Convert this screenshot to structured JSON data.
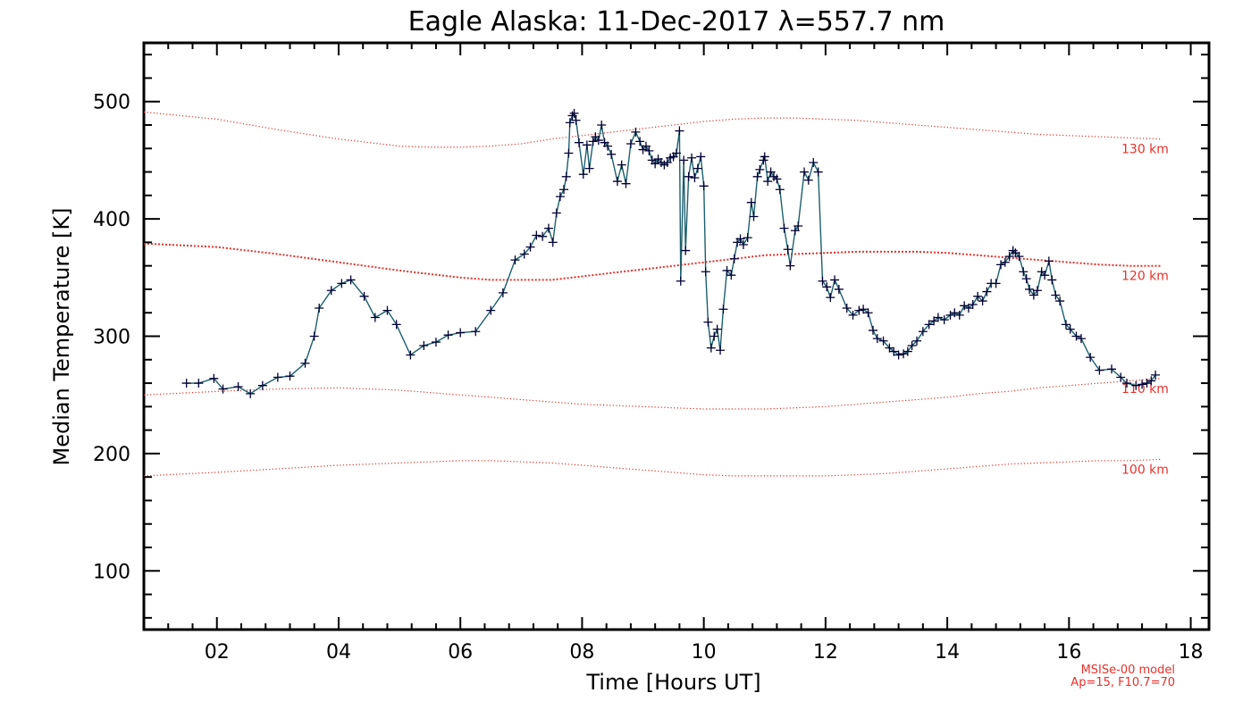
{
  "chart_data": {
    "type": "line",
    "title": "Eagle Alaska: 11-Dec-2017 λ=557.7 nm",
    "xlabel": "Time [Hours UT]",
    "ylabel": "Median Temperature [K]",
    "xlim": [
      0.8,
      18.3
    ],
    "ylim": [
      50,
      550
    ],
    "xticks": [
      2,
      4,
      6,
      8,
      10,
      12,
      14,
      16,
      18
    ],
    "xtick_labels": [
      "02",
      "04",
      "06",
      "08",
      "10",
      "12",
      "14",
      "16",
      "18"
    ],
    "yticks": [
      100,
      200,
      300,
      400,
      500
    ],
    "ytick_labels": [
      "100",
      "200",
      "300",
      "400",
      "500"
    ],
    "grid": false,
    "annotations": [
      "MSISe-00 model",
      "Ap=15, F10.7=70"
    ],
    "colors": {
      "data_line": "#1c5f6e",
      "data_marker": "#000033",
      "model": "#e8302a"
    },
    "series": [
      {
        "points": [
          [
            1.5,
            260
          ],
          [
            1.7,
            260
          ],
          [
            1.95,
            264
          ],
          [
            2.1,
            255
          ],
          [
            2.35,
            257
          ],
          [
            2.55,
            251
          ],
          [
            2.75,
            258
          ],
          [
            3.0,
            265
          ],
          [
            3.2,
            266
          ],
          [
            3.45,
            277
          ],
          [
            3.6,
            300
          ],
          [
            3.68,
            324
          ],
          [
            3.88,
            339
          ],
          [
            4.05,
            345
          ],
          [
            4.2,
            348
          ],
          [
            4.42,
            334
          ],
          [
            4.6,
            316
          ],
          [
            4.8,
            322
          ],
          [
            4.95,
            310
          ],
          [
            5.18,
            284
          ],
          [
            5.4,
            292
          ],
          [
            5.6,
            295
          ],
          [
            5.8,
            301
          ],
          [
            6.0,
            303
          ],
          [
            6.25,
            304
          ],
          [
            6.5,
            322
          ],
          [
            6.7,
            337
          ],
          [
            6.9,
            365
          ],
          [
            7.05,
            370
          ],
          [
            7.15,
            376
          ],
          [
            7.25,
            386
          ],
          [
            7.35,
            385
          ],
          [
            7.45,
            392
          ],
          [
            7.52,
            380
          ],
          [
            7.58,
            405
          ],
          [
            7.64,
            419
          ],
          [
            7.7,
            425
          ],
          [
            7.74,
            436
          ],
          [
            7.78,
            456
          ],
          [
            7.8,
            482
          ],
          [
            7.84,
            488
          ],
          [
            7.87,
            490
          ],
          [
            7.9,
            484
          ],
          [
            7.95,
            465
          ],
          [
            8.02,
            438
          ],
          [
            8.08,
            463
          ],
          [
            8.12,
            443
          ],
          [
            8.18,
            466
          ],
          [
            8.22,
            470
          ],
          [
            8.27,
            467
          ],
          [
            8.32,
            480
          ],
          [
            8.37,
            465
          ],
          [
            8.42,
            462
          ],
          [
            8.48,
            455
          ],
          [
            8.58,
            432
          ],
          [
            8.65,
            446
          ],
          [
            8.72,
            430
          ],
          [
            8.8,
            464
          ],
          [
            8.88,
            474
          ],
          [
            8.95,
            466
          ],
          [
            9.0,
            459
          ],
          [
            9.05,
            462
          ],
          [
            9.1,
            458
          ],
          [
            9.15,
            450
          ],
          [
            9.2,
            447
          ],
          [
            9.25,
            451
          ],
          [
            9.3,
            448
          ],
          [
            9.35,
            446
          ],
          [
            9.4,
            448
          ],
          [
            9.45,
            452
          ],
          [
            9.5,
            453
          ],
          [
            9.55,
            456
          ],
          [
            9.6,
            475
          ],
          [
            9.62,
            347
          ],
          [
            9.67,
            450
          ],
          [
            9.7,
            373
          ],
          [
            9.75,
            436
          ],
          [
            9.8,
            452
          ],
          [
            9.85,
            435
          ],
          [
            9.9,
            443
          ],
          [
            9.95,
            453
          ],
          [
            10.0,
            428
          ],
          [
            10.03,
            355
          ],
          [
            10.07,
            312
          ],
          [
            10.12,
            290
          ],
          [
            10.17,
            300
          ],
          [
            10.22,
            306
          ],
          [
            10.27,
            288
          ],
          [
            10.32,
            323
          ],
          [
            10.38,
            356
          ],
          [
            10.45,
            352
          ],
          [
            10.5,
            366
          ],
          [
            10.55,
            380
          ],
          [
            10.6,
            383
          ],
          [
            10.65,
            378
          ],
          [
            10.72,
            384
          ],
          [
            10.78,
            414
          ],
          [
            10.82,
            402
          ],
          [
            10.88,
            436
          ],
          [
            10.92,
            442
          ],
          [
            10.98,
            450
          ],
          [
            11.0,
            453
          ],
          [
            11.05,
            432
          ],
          [
            11.1,
            440
          ],
          [
            11.15,
            436
          ],
          [
            11.2,
            434
          ],
          [
            11.25,
            425
          ],
          [
            11.32,
            392
          ],
          [
            11.38,
            374
          ],
          [
            11.42,
            360
          ],
          [
            11.5,
            390
          ],
          [
            11.55,
            394
          ],
          [
            11.65,
            440
          ],
          [
            11.72,
            433
          ],
          [
            11.8,
            448
          ],
          [
            11.88,
            440
          ],
          [
            11.95,
            347
          ],
          [
            12.02,
            342
          ],
          [
            12.08,
            333
          ],
          [
            12.15,
            348
          ],
          [
            12.22,
            340
          ],
          [
            12.35,
            324
          ],
          [
            12.45,
            318
          ],
          [
            12.55,
            322
          ],
          [
            12.62,
            323
          ],
          [
            12.7,
            320
          ],
          [
            12.78,
            305
          ],
          [
            12.85,
            298
          ],
          [
            12.95,
            296
          ],
          [
            13.05,
            290
          ],
          [
            13.12,
            287
          ],
          [
            13.2,
            284
          ],
          [
            13.28,
            285
          ],
          [
            13.35,
            287
          ],
          [
            13.42,
            292
          ],
          [
            13.5,
            296
          ],
          [
            13.6,
            304
          ],
          [
            13.7,
            310
          ],
          [
            13.78,
            313
          ],
          [
            13.85,
            316
          ],
          [
            13.95,
            314
          ],
          [
            14.05,
            318
          ],
          [
            14.12,
            320
          ],
          [
            14.2,
            318
          ],
          [
            14.28,
            326
          ],
          [
            14.35,
            324
          ],
          [
            14.42,
            327
          ],
          [
            14.5,
            334
          ],
          [
            14.58,
            330
          ],
          [
            14.65,
            338
          ],
          [
            14.72,
            345
          ],
          [
            14.8,
            345
          ],
          [
            14.88,
            361
          ],
          [
            14.95,
            363
          ],
          [
            15.02,
            368
          ],
          [
            15.08,
            373
          ],
          [
            15.12,
            371
          ],
          [
            15.18,
            368
          ],
          [
            15.25,
            355
          ],
          [
            15.3,
            349
          ],
          [
            15.35,
            340
          ],
          [
            15.42,
            335
          ],
          [
            15.48,
            339
          ],
          [
            15.55,
            355
          ],
          [
            15.6,
            352
          ],
          [
            15.67,
            364
          ],
          [
            15.72,
            348
          ],
          [
            15.78,
            335
          ],
          [
            15.85,
            330
          ],
          [
            15.95,
            310
          ],
          [
            16.02,
            306
          ],
          [
            16.12,
            300
          ],
          [
            16.2,
            298
          ],
          [
            16.35,
            282
          ],
          [
            16.5,
            271
          ],
          [
            16.7,
            272
          ],
          [
            16.85,
            265
          ],
          [
            16.95,
            260
          ],
          [
            17.1,
            258
          ],
          [
            17.2,
            259
          ],
          [
            17.28,
            260
          ],
          [
            17.35,
            262
          ],
          [
            17.42,
            267
          ]
        ]
      }
    ],
    "model_curves": [
      {
        "label": "130 km",
        "x": [
          0.8,
          2.0,
          3.0,
          4.0,
          5.0,
          5.5,
          6.0,
          6.5,
          7.0,
          7.5,
          8.0,
          8.5,
          9.0,
          9.5,
          10.0,
          10.5,
          11.0,
          11.5,
          12.0,
          12.5,
          13.0,
          13.5,
          14.0,
          14.5,
          15.0,
          15.5,
          16.0,
          16.5,
          17.0,
          17.5
        ],
        "y": [
          491,
          485,
          476,
          468,
          462,
          461,
          461,
          462,
          464,
          468,
          471,
          474,
          477,
          480,
          483,
          485,
          486,
          486,
          485,
          484,
          482,
          480,
          478,
          476,
          474,
          472,
          471,
          470,
          469,
          468
        ]
      },
      {
        "label": "120 km",
        "x": [
          0.8,
          2.0,
          3.0,
          4.0,
          5.0,
          5.5,
          6.0,
          6.5,
          7.0,
          7.5,
          8.0,
          8.5,
          9.0,
          9.5,
          10.0,
          10.5,
          11.0,
          11.5,
          12.0,
          12.5,
          13.0,
          13.5,
          14.0,
          14.5,
          15.0,
          15.5,
          16.0,
          16.5,
          17.0,
          17.5
        ],
        "y": [
          379,
          376,
          370,
          363,
          356,
          353,
          350,
          348,
          348,
          348,
          351,
          354,
          357,
          360,
          363,
          366,
          369,
          370,
          371,
          372,
          372,
          372,
          371,
          369,
          367,
          365,
          363,
          361,
          360,
          360
        ]
      },
      {
        "label": "110 km",
        "x": [
          0.8,
          2.0,
          3.0,
          4.0,
          5.0,
          5.5,
          6.0,
          6.5,
          7.0,
          7.5,
          8.0,
          8.5,
          9.0,
          9.5,
          10.0,
          10.5,
          11.0,
          11.5,
          12.0,
          12.5,
          13.0,
          13.5,
          14.0,
          14.5,
          15.0,
          15.5,
          16.0,
          16.5,
          17.0,
          17.5
        ],
        "y": [
          250,
          253,
          255,
          256,
          254,
          252,
          250,
          248,
          246,
          244,
          242,
          241,
          240,
          239,
          238,
          238,
          238,
          239,
          240,
          242,
          244,
          246,
          248,
          251,
          253,
          256,
          258,
          260,
          262,
          264
        ]
      },
      {
        "label": "100 km",
        "x": [
          0.8,
          2.0,
          3.0,
          4.0,
          5.0,
          5.5,
          6.0,
          6.5,
          7.0,
          7.5,
          8.0,
          8.5,
          9.0,
          9.5,
          10.0,
          10.5,
          11.0,
          11.5,
          12.0,
          12.5,
          13.0,
          13.5,
          14.0,
          14.5,
          15.0,
          15.5,
          16.0,
          16.5,
          17.0,
          17.5
        ],
        "y": [
          181,
          184,
          187,
          190,
          192,
          193,
          194,
          194,
          193,
          192,
          190,
          188,
          186,
          184,
          182,
          181,
          181,
          181,
          181,
          182,
          183,
          185,
          187,
          189,
          191,
          192,
          193,
          194,
          194,
          195
        ]
      }
    ]
  }
}
